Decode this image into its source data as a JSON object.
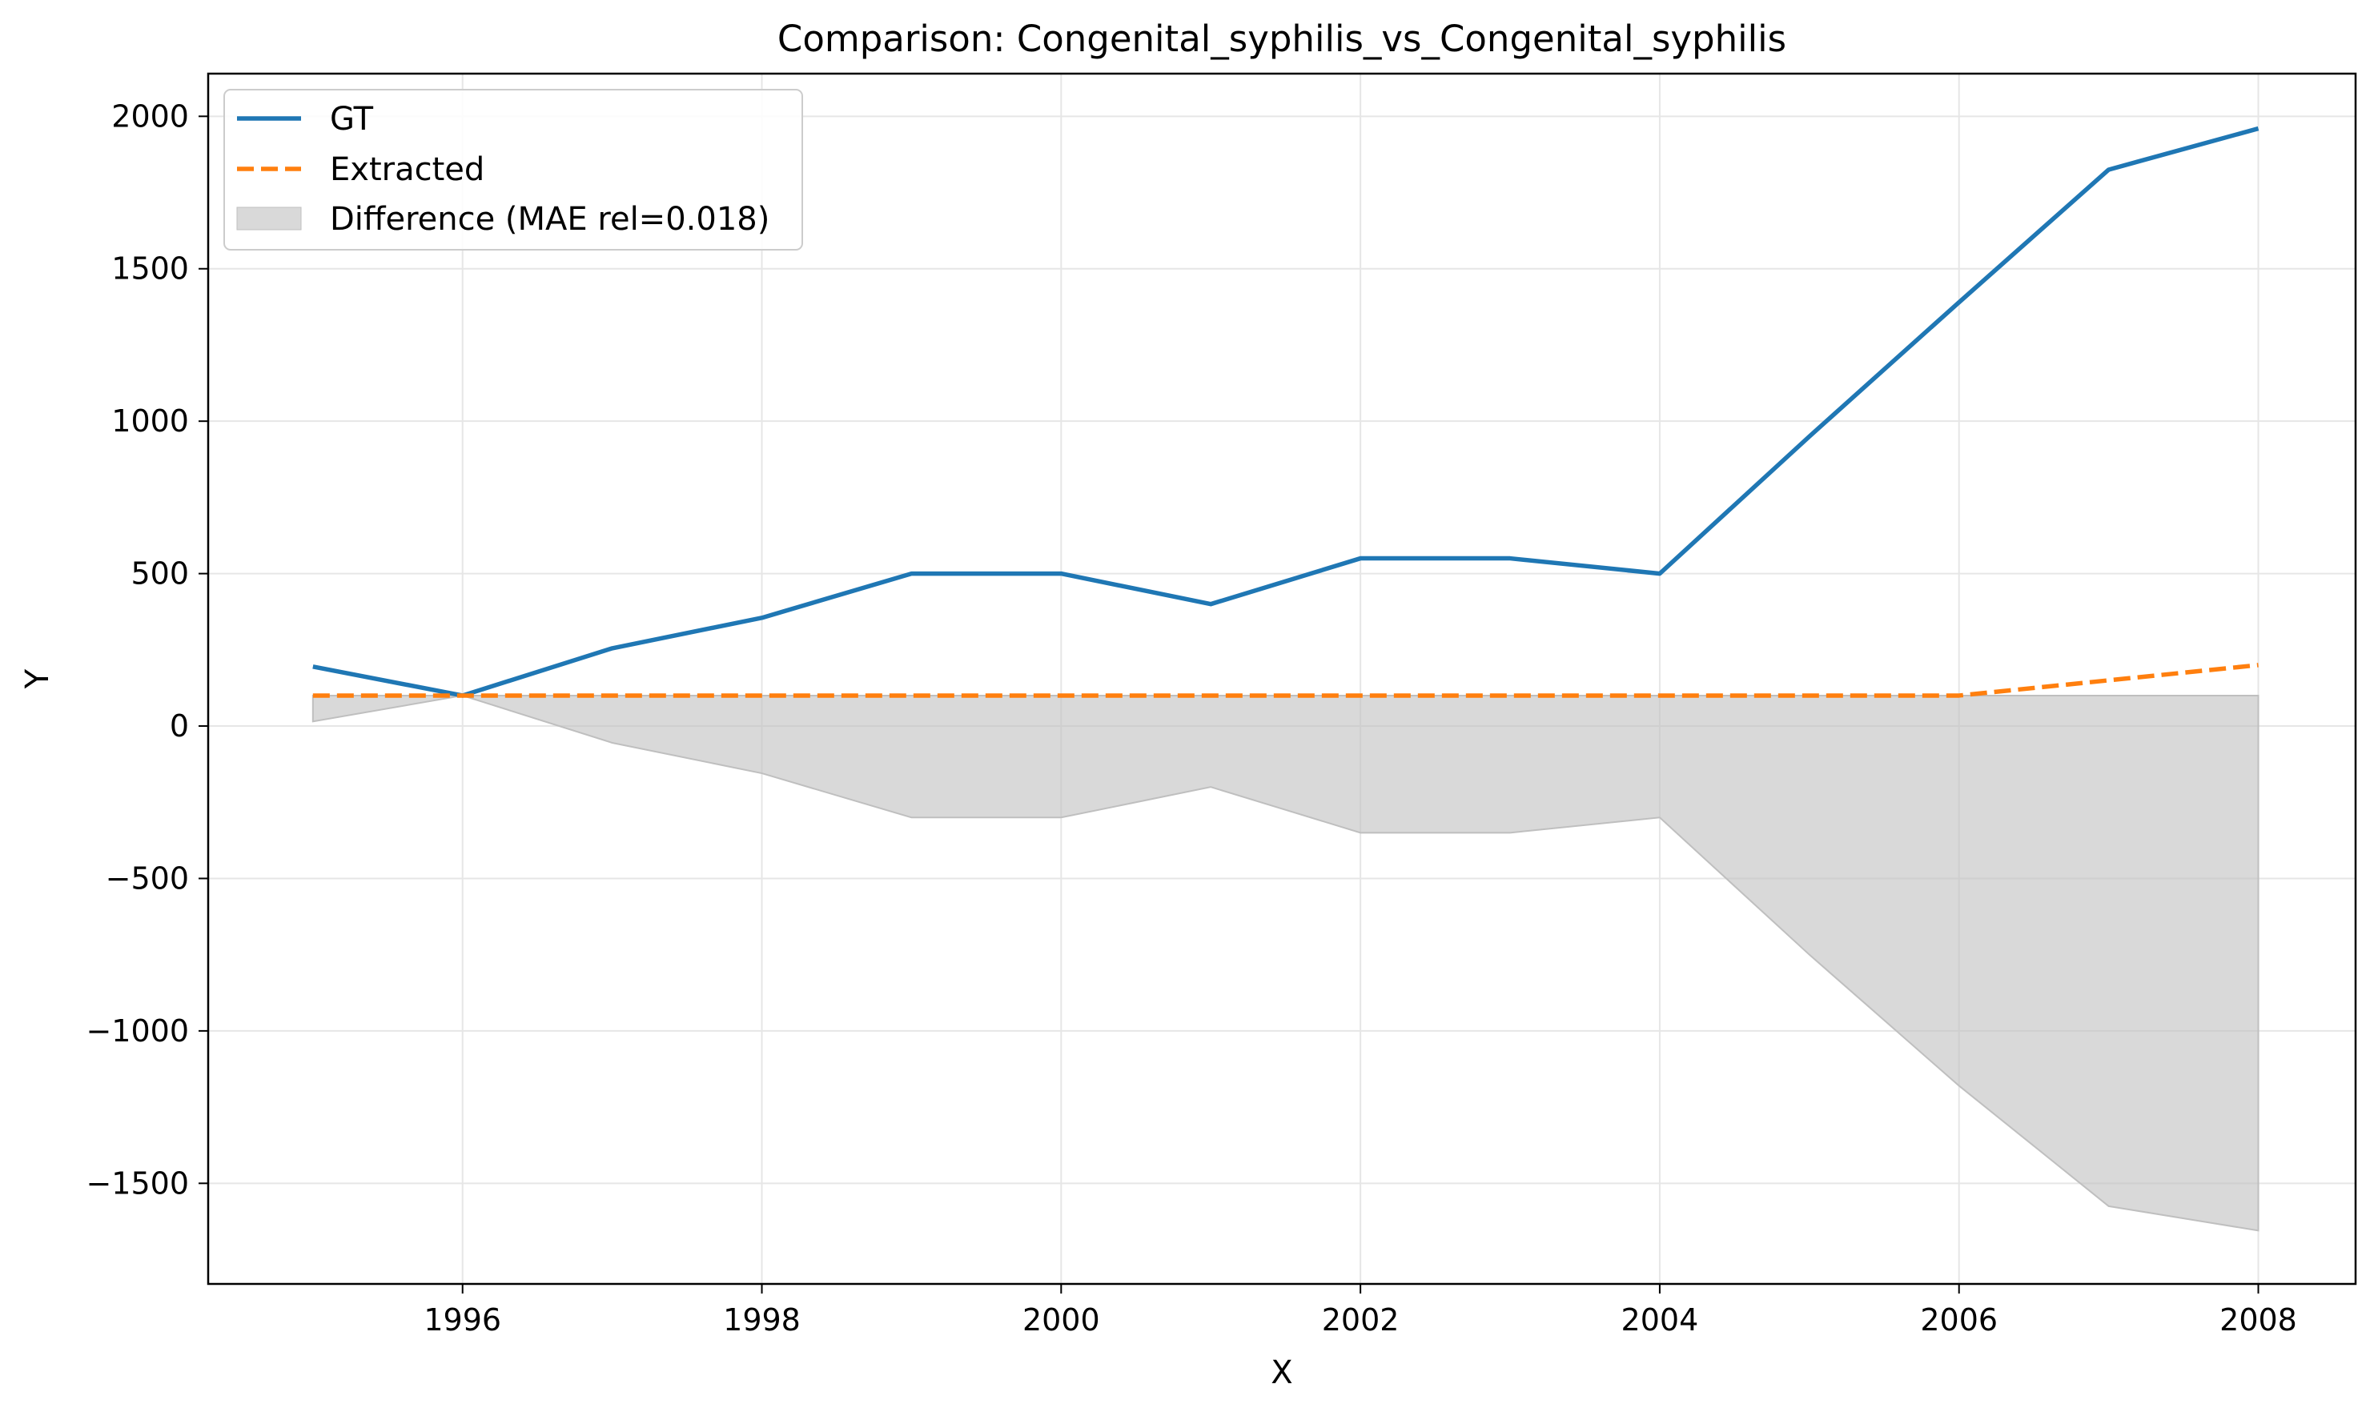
{
  "chart_data": {
    "type": "line",
    "title": "Comparison: Congenital_syphilis_vs_Congenital_syphilis",
    "xlabel": "X",
    "ylabel": "Y",
    "xlim": [
      1994.3,
      2008.65
    ],
    "ylim": [
      -1830,
      2140
    ],
    "xticks": [
      1996,
      1998,
      2000,
      2002,
      2004,
      2006,
      2008
    ],
    "xtick_labels": [
      "1996",
      "1998",
      "2000",
      "2002",
      "2004",
      "2006",
      "2008"
    ],
    "yticks": [
      2000,
      1500,
      1000,
      500,
      0,
      -500,
      -1000,
      -1500
    ],
    "ytick_labels": [
      "2000",
      "1500",
      "1000",
      "500",
      "0",
      "−500",
      "−1000",
      "−1500"
    ],
    "grid": true,
    "legend_position": "top-left",
    "x": [
      1995,
      1996,
      1997,
      1998,
      1999,
      2000,
      2001,
      2002,
      2003,
      2004,
      2005,
      2006,
      2007,
      2008
    ],
    "series": [
      {
        "name": "GT",
        "style": "solid",
        "color": "#1f77b4",
        "values": [
          195,
          100,
          255,
          355,
          500,
          500,
          400,
          550,
          550,
          500,
          950,
          1390,
          1825,
          1960
        ]
      },
      {
        "name": "Extracted",
        "style": "dashed",
        "color": "#ff7f0e",
        "values": [
          100,
          100,
          100,
          100,
          100,
          100,
          100,
          100,
          100,
          100,
          100,
          100,
          150,
          200
        ]
      }
    ],
    "difference_band": {
      "name": "Difference (MAE rel=0.018)",
      "color": "#bfbfbf",
      "upper": [
        100,
        100,
        100,
        100,
        100,
        100,
        100,
        100,
        100,
        100,
        100,
        100,
        100,
        100
      ],
      "lower": [
        15,
        100,
        -55,
        -155,
        -300,
        -300,
        -200,
        -350,
        -350,
        -300,
        -750,
        -1180,
        -1575,
        -1655
      ]
    }
  }
}
